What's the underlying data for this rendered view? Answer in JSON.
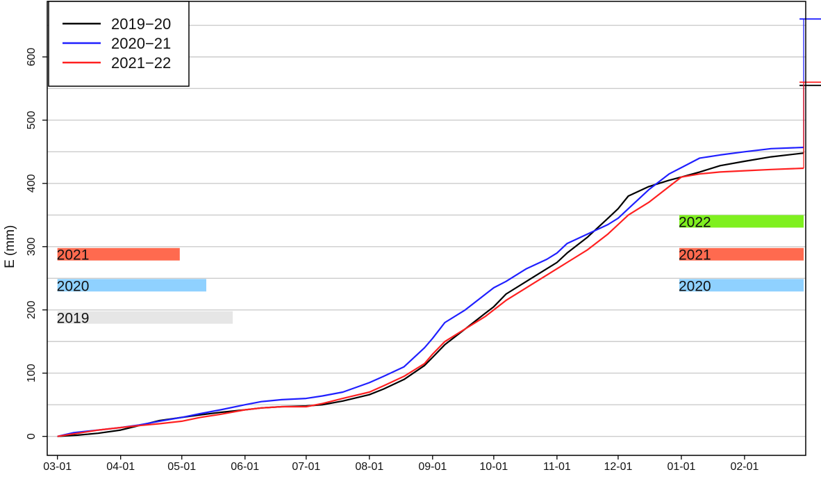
{
  "chart_data": {
    "type": "line",
    "title": "",
    "xlabel": "",
    "ylabel": "E (mm)",
    "grid": "horizontal",
    "legend_position": "top-left",
    "x_domain_days": [
      -5,
      367
    ],
    "ylim": [
      -30,
      690
    ],
    "x_ticks": [
      {
        "label": "03-01",
        "day": 0
      },
      {
        "label": "04-01",
        "day": 31
      },
      {
        "label": "05-01",
        "day": 61
      },
      {
        "label": "06-01",
        "day": 92
      },
      {
        "label": "07-01",
        "day": 122
      },
      {
        "label": "08-01",
        "day": 153
      },
      {
        "label": "09-01",
        "day": 184
      },
      {
        "label": "10-01",
        "day": 214
      },
      {
        "label": "11-01",
        "day": 245
      },
      {
        "label": "12-01",
        "day": 275
      },
      {
        "label": "01-01",
        "day": 306
      },
      {
        "label": "02-01",
        "day": 337
      }
    ],
    "y_ticks": [
      0,
      100,
      200,
      300,
      400,
      500,
      600
    ],
    "y_grid_step": 50,
    "series": [
      {
        "name": "2019−20",
        "color": "#000000",
        "points": [
          [
            0,
            0
          ],
          [
            10,
            2
          ],
          [
            20,
            5
          ],
          [
            31,
            10
          ],
          [
            40,
            17
          ],
          [
            50,
            25
          ],
          [
            61,
            30
          ],
          [
            70,
            34
          ],
          [
            80,
            38
          ],
          [
            92,
            42
          ],
          [
            100,
            45
          ],
          [
            110,
            47
          ],
          [
            122,
            48
          ],
          [
            130,
            50
          ],
          [
            140,
            56
          ],
          [
            153,
            66
          ],
          [
            160,
            75
          ],
          [
            170,
            90
          ],
          [
            180,
            112
          ],
          [
            184,
            125
          ],
          [
            190,
            145
          ],
          [
            200,
            170
          ],
          [
            210,
            195
          ],
          [
            214,
            205
          ],
          [
            220,
            225
          ],
          [
            230,
            245
          ],
          [
            240,
            265
          ],
          [
            245,
            275
          ],
          [
            250,
            290
          ],
          [
            260,
            315
          ],
          [
            270,
            345
          ],
          [
            275,
            360
          ],
          [
            280,
            380
          ],
          [
            290,
            395
          ],
          [
            300,
            405
          ],
          [
            306,
            410
          ],
          [
            315,
            418
          ],
          [
            325,
            428
          ],
          [
            337,
            435
          ],
          [
            350,
            442
          ],
          [
            366,
            448
          ]
        ],
        "end_bar": {
          "low": 448,
          "high": 555
        }
      },
      {
        "name": "2020−21",
        "color": "#1f1fff",
        "points": [
          [
            0,
            0
          ],
          [
            8,
            6
          ],
          [
            20,
            10
          ],
          [
            31,
            14
          ],
          [
            40,
            18
          ],
          [
            50,
            24
          ],
          [
            61,
            30
          ],
          [
            70,
            36
          ],
          [
            80,
            42
          ],
          [
            92,
            50
          ],
          [
            100,
            55
          ],
          [
            110,
            58
          ],
          [
            122,
            60
          ],
          [
            130,
            64
          ],
          [
            140,
            70
          ],
          [
            153,
            85
          ],
          [
            160,
            95
          ],
          [
            170,
            110
          ],
          [
            180,
            140
          ],
          [
            184,
            155
          ],
          [
            190,
            180
          ],
          [
            200,
            200
          ],
          [
            210,
            225
          ],
          [
            214,
            235
          ],
          [
            220,
            245
          ],
          [
            230,
            265
          ],
          [
            240,
            280
          ],
          [
            245,
            290
          ],
          [
            250,
            305
          ],
          [
            260,
            320
          ],
          [
            270,
            335
          ],
          [
            275,
            345
          ],
          [
            280,
            360
          ],
          [
            290,
            390
          ],
          [
            300,
            415
          ],
          [
            306,
            425
          ],
          [
            315,
            440
          ],
          [
            325,
            445
          ],
          [
            337,
            450
          ],
          [
            350,
            455
          ],
          [
            366,
            457
          ]
        ],
        "end_bar": {
          "low": 457,
          "high": 660
        }
      },
      {
        "name": "2021−22",
        "color": "#ff2020",
        "points": [
          [
            0,
            0
          ],
          [
            10,
            5
          ],
          [
            20,
            10
          ],
          [
            31,
            14
          ],
          [
            40,
            17
          ],
          [
            50,
            20
          ],
          [
            61,
            24
          ],
          [
            70,
            30
          ],
          [
            80,
            35
          ],
          [
            92,
            42
          ],
          [
            100,
            45
          ],
          [
            110,
            47
          ],
          [
            122,
            47
          ],
          [
            130,
            52
          ],
          [
            140,
            60
          ],
          [
            153,
            70
          ],
          [
            160,
            80
          ],
          [
            170,
            95
          ],
          [
            180,
            115
          ],
          [
            184,
            130
          ],
          [
            190,
            150
          ],
          [
            200,
            170
          ],
          [
            210,
            190
          ],
          [
            214,
            200
          ],
          [
            220,
            215
          ],
          [
            230,
            235
          ],
          [
            240,
            255
          ],
          [
            245,
            265
          ],
          [
            250,
            275
          ],
          [
            260,
            295
          ],
          [
            270,
            320
          ],
          [
            275,
            335
          ],
          [
            280,
            350
          ],
          [
            290,
            370
          ],
          [
            300,
            395
          ],
          [
            306,
            410
          ],
          [
            315,
            415
          ],
          [
            325,
            418
          ],
          [
            337,
            420
          ],
          [
            350,
            422
          ],
          [
            366,
            424
          ]
        ],
        "end_bar": {
          "low": 424,
          "high": 560
        }
      }
    ],
    "bars": [
      {
        "label": "2021",
        "y_center": 288,
        "start_day": 0,
        "end_day": 60,
        "color": "#ff6a4f"
      },
      {
        "label": "2020",
        "y_center": 239,
        "start_day": 0,
        "end_day": 73,
        "color": "#8fd1ff"
      },
      {
        "label": "2019",
        "y_center": 188,
        "start_day": 0,
        "end_day": 86,
        "color": "#e6e6e6"
      },
      {
        "label": "2022",
        "y_center": 340,
        "start_day": 305,
        "end_day": 366,
        "color": "#7ff01f"
      },
      {
        "label": "2021",
        "y_center": 288,
        "start_day": 305,
        "end_day": 366,
        "color": "#ff6a4f"
      },
      {
        "label": "2020",
        "y_center": 239,
        "start_day": 305,
        "end_day": 366,
        "color": "#8fd1ff"
      }
    ]
  }
}
